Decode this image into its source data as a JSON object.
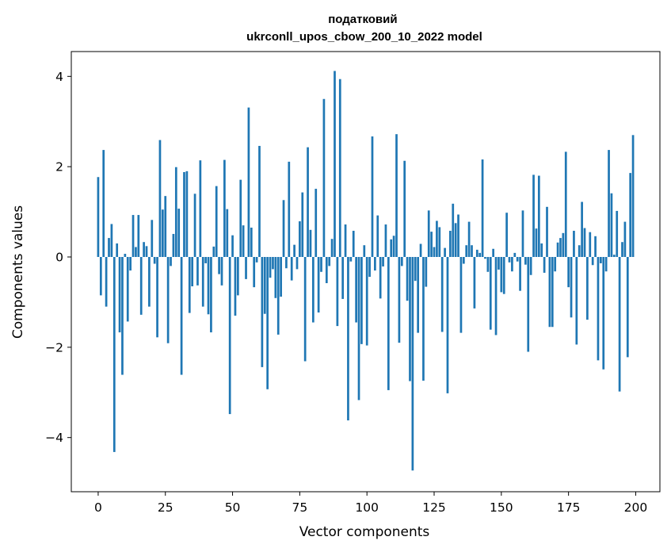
{
  "chart_data": {
    "type": "bar",
    "title": "податковий\nukrconll_upos_cbow_200_10_2022 model",
    "xlabel": "Vector components",
    "ylabel": "Components values",
    "xlim": [
      -10,
      209
    ],
    "ylim": [
      -5.2,
      4.55
    ],
    "xticks": [
      0,
      25,
      50,
      75,
      100,
      125,
      150,
      175,
      200
    ],
    "yticks": [
      -4,
      -2,
      0,
      2,
      4
    ],
    "xtick_labels": [
      "0",
      "25",
      "50",
      "75",
      "100",
      "125",
      "150",
      "175",
      "200"
    ],
    "ytick_labels": [
      "−4",
      "−2",
      "0",
      "2",
      "4"
    ],
    "grid": false,
    "bar_color": "#1f77b4",
    "x": [
      0,
      1,
      2,
      3,
      4,
      5,
      6,
      7,
      8,
      9,
      10,
      11,
      12,
      13,
      14,
      15,
      16,
      17,
      18,
      19,
      20,
      21,
      22,
      23,
      24,
      25,
      26,
      27,
      28,
      29,
      30,
      31,
      32,
      33,
      34,
      35,
      36,
      37,
      38,
      39,
      40,
      41,
      42,
      43,
      44,
      45,
      46,
      47,
      48,
      49,
      50,
      51,
      52,
      53,
      54,
      55,
      56,
      57,
      58,
      59,
      60,
      61,
      62,
      63,
      64,
      65,
      66,
      67,
      68,
      69,
      70,
      71,
      72,
      73,
      74,
      75,
      76,
      77,
      78,
      79,
      80,
      81,
      82,
      83,
      84,
      85,
      86,
      87,
      88,
      89,
      90,
      91,
      92,
      93,
      94,
      95,
      96,
      97,
      98,
      99,
      100,
      101,
      102,
      103,
      104,
      105,
      106,
      107,
      108,
      109,
      110,
      111,
      112,
      113,
      114,
      115,
      116,
      117,
      118,
      119,
      120,
      121,
      122,
      123,
      124,
      125,
      126,
      127,
      128,
      129,
      130,
      131,
      132,
      133,
      134,
      135,
      136,
      137,
      138,
      139,
      140,
      141,
      142,
      143,
      144,
      145,
      146,
      147,
      148,
      149,
      150,
      151,
      152,
      153,
      154,
      155,
      156,
      157,
      158,
      159,
      160,
      161,
      162,
      163,
      164,
      165,
      166,
      167,
      168,
      169,
      170,
      171,
      172,
      173,
      174,
      175,
      176,
      177,
      178,
      179,
      180,
      181,
      182,
      183,
      184,
      185,
      186,
      187,
      188,
      189,
      190,
      191,
      192,
      193,
      194,
      195,
      196,
      197,
      198,
      199
    ],
    "values": [
      1.77,
      -0.85,
      2.37,
      -1.1,
      0.42,
      0.73,
      -4.32,
      0.3,
      -1.67,
      -2.61,
      0.07,
      -1.43,
      -0.3,
      0.93,
      0.22,
      0.93,
      -1.28,
      0.33,
      0.24,
      -1.1,
      0.82,
      -0.15,
      -1.78,
      2.59,
      1.05,
      1.35,
      -1.91,
      -0.2,
      0.51,
      1.99,
      1.07,
      -2.61,
      1.88,
      1.9,
      -1.24,
      -0.65,
      1.4,
      -0.63,
      2.14,
      -1.1,
      -0.14,
      -1.27,
      -1.67,
      0.23,
      1.57,
      -0.38,
      -0.63,
      2.15,
      1.06,
      -3.48,
      0.48,
      -1.3,
      -0.85,
      1.71,
      0.7,
      -0.49,
      3.31,
      0.65,
      -0.67,
      -0.12,
      2.46,
      -2.44,
      -1.26,
      -2.93,
      -0.46,
      -0.27,
      -0.91,
      -1.72,
      -0.88,
      1.26,
      -0.25,
      2.11,
      -0.52,
      0.27,
      -0.27,
      0.79,
      1.43,
      -2.31,
      2.43,
      0.6,
      -1.45,
      1.51,
      -1.23,
      -0.33,
      3.5,
      -0.58,
      -0.2,
      0.4,
      4.12,
      -1.53,
      3.94,
      -0.93,
      0.72,
      -3.62,
      -0.1,
      0.58,
      -1.45,
      -3.17,
      -1.93,
      0.26,
      -1.96,
      -0.44,
      2.67,
      -0.3,
      0.92,
      -0.92,
      -0.21,
      0.72,
      -2.95,
      0.39,
      0.47,
      2.72,
      -1.9,
      -0.2,
      2.13,
      -0.97,
      -2.75,
      -4.73,
      -0.53,
      -1.68,
      0.29,
      -2.74,
      -0.66,
      1.03,
      0.56,
      0.22,
      0.8,
      0.66,
      -1.66,
      0.2,
      -3.02,
      0.58,
      1.18,
      0.75,
      0.94,
      -1.68,
      -0.15,
      0.26,
      0.78,
      0.26,
      -1.14,
      0.16,
      0.09,
      2.16,
      -0.04,
      -0.33,
      -1.61,
      0.18,
      -1.73,
      -0.28,
      -0.78,
      -0.82,
      0.98,
      -0.12,
      -0.32,
      0.09,
      -0.1,
      -0.75,
      1.03,
      -0.17,
      -2.1,
      -0.4,
      1.82,
      0.63,
      1.8,
      0.3,
      -0.35,
      1.11,
      -1.55,
      -1.55,
      -0.32,
      0.32,
      0.42,
      0.53,
      2.33,
      -0.67,
      -1.34,
      0.58,
      -1.94,
      0.26,
      1.22,
      0.64,
      -1.39,
      0.55,
      -0.18,
      0.46,
      -2.29,
      -0.14,
      -2.49,
      -0.32,
      2.37,
      1.41,
      0.05,
      1.02,
      -2.98,
      0.33,
      0.78,
      -2.22,
      1.86,
      2.7
    ]
  }
}
